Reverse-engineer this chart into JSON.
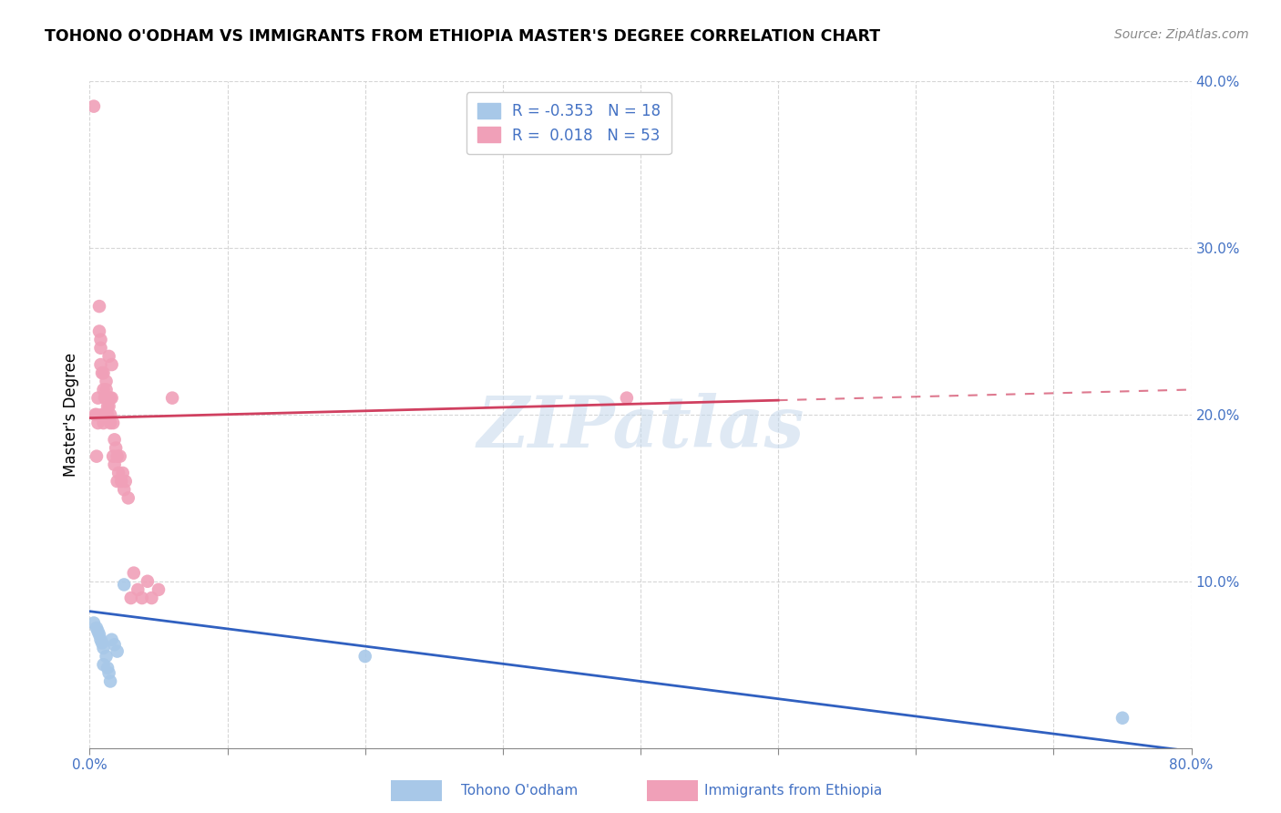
{
  "title": "TOHONO O'ODHAM VS IMMIGRANTS FROM ETHIOPIA MASTER'S DEGREE CORRELATION CHART",
  "source": "Source: ZipAtlas.com",
  "ylabel": "Master's Degree",
  "xlim": [
    0.0,
    0.8
  ],
  "ylim": [
    0.0,
    0.4
  ],
  "blue_color": "#a8c8e8",
  "pink_color": "#f0a0b8",
  "blue_line_color": "#3060c0",
  "pink_line_color": "#d04060",
  "watermark": "ZIPatlas",
  "blue_x": [
    0.003,
    0.005,
    0.006,
    0.007,
    0.008,
    0.009,
    0.01,
    0.01,
    0.012,
    0.013,
    0.014,
    0.015,
    0.016,
    0.018,
    0.02,
    0.025,
    0.2,
    0.75
  ],
  "blue_y": [
    0.075,
    0.072,
    0.07,
    0.068,
    0.065,
    0.063,
    0.06,
    0.05,
    0.055,
    0.048,
    0.045,
    0.04,
    0.065,
    0.062,
    0.058,
    0.098,
    0.055,
    0.018
  ],
  "pink_x": [
    0.003,
    0.004,
    0.005,
    0.005,
    0.006,
    0.006,
    0.007,
    0.007,
    0.008,
    0.008,
    0.008,
    0.009,
    0.009,
    0.01,
    0.01,
    0.01,
    0.011,
    0.011,
    0.012,
    0.012,
    0.012,
    0.013,
    0.013,
    0.014,
    0.014,
    0.015,
    0.015,
    0.015,
    0.016,
    0.016,
    0.017,
    0.017,
    0.018,
    0.018,
    0.019,
    0.02,
    0.02,
    0.021,
    0.022,
    0.023,
    0.024,
    0.025,
    0.026,
    0.028,
    0.03,
    0.032,
    0.035,
    0.038,
    0.042,
    0.045,
    0.05,
    0.39,
    0.06
  ],
  "pink_y": [
    0.385,
    0.2,
    0.2,
    0.175,
    0.195,
    0.21,
    0.25,
    0.265,
    0.23,
    0.24,
    0.245,
    0.2,
    0.225,
    0.195,
    0.215,
    0.225,
    0.2,
    0.21,
    0.2,
    0.215,
    0.22,
    0.2,
    0.205,
    0.235,
    0.205,
    0.195,
    0.21,
    0.2,
    0.23,
    0.21,
    0.175,
    0.195,
    0.185,
    0.17,
    0.18,
    0.16,
    0.175,
    0.165,
    0.175,
    0.16,
    0.165,
    0.155,
    0.16,
    0.15,
    0.09,
    0.105,
    0.095,
    0.09,
    0.1,
    0.09,
    0.095,
    0.21,
    0.21
  ],
  "pink_line_start_x": 0.0,
  "pink_line_start_y": 0.198,
  "pink_line_end_x": 0.8,
  "pink_line_end_y": 0.215,
  "blue_line_start_x": 0.0,
  "blue_line_start_y": 0.082,
  "blue_line_end_x": 0.8,
  "blue_line_end_y": -0.002
}
